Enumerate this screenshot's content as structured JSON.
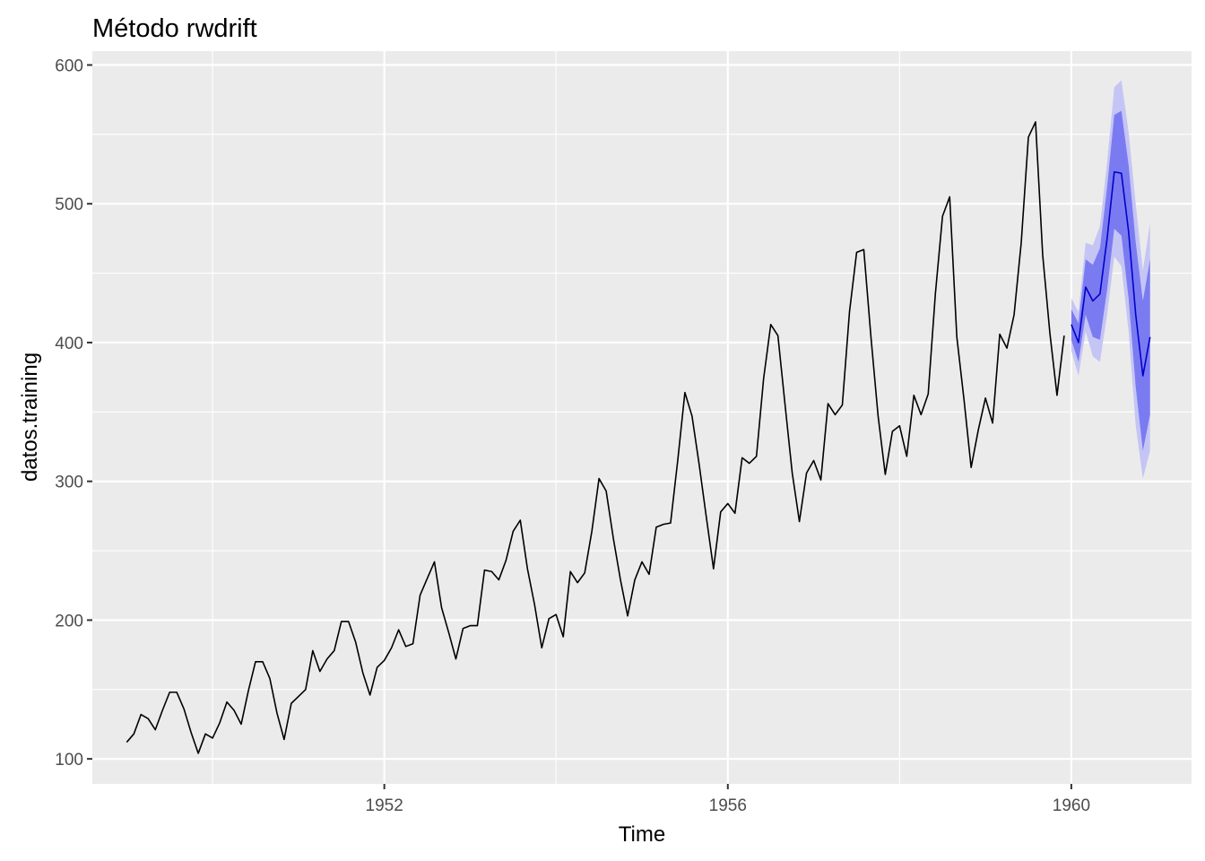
{
  "chart_data": {
    "type": "line",
    "title": "Método rwdrift",
    "xlabel": "Time",
    "ylabel": "datos.training",
    "xlim": [
      1948.6,
      1961.4
    ],
    "ylim": [
      82,
      610
    ],
    "grid": true,
    "x_ticks": [
      {
        "value": 1952,
        "label": "1952"
      },
      {
        "value": 1956,
        "label": "1956"
      },
      {
        "value": 1960,
        "label": "1960"
      }
    ],
    "y_ticks": [
      {
        "value": 100,
        "label": "100"
      },
      {
        "value": 200,
        "label": "200"
      },
      {
        "value": 300,
        "label": "300"
      },
      {
        "value": 400,
        "label": "400"
      },
      {
        "value": 500,
        "label": "500"
      },
      {
        "value": 600,
        "label": "600"
      }
    ],
    "series": [
      {
        "role": "observed",
        "color": "#000000",
        "start": 1949,
        "frequency": 12,
        "values": [
          112,
          118,
          132,
          129,
          121,
          135,
          148,
          148,
          136,
          119,
          104,
          118,
          115,
          126,
          141,
          135,
          125,
          149,
          170,
          170,
          158,
          133,
          114,
          140,
          145,
          150,
          178,
          163,
          172,
          178,
          199,
          199,
          184,
          162,
          146,
          166,
          171,
          180,
          193,
          181,
          183,
          218,
          230,
          242,
          209,
          191,
          172,
          194,
          196,
          196,
          236,
          235,
          229,
          243,
          264,
          272,
          237,
          211,
          180,
          201,
          204,
          188,
          235,
          227,
          234,
          264,
          302,
          293,
          259,
          229,
          203,
          229,
          242,
          233,
          267,
          269,
          270,
          315,
          364,
          347,
          312,
          274,
          237,
          278,
          284,
          277,
          317,
          313,
          318,
          374,
          413,
          405,
          355,
          306,
          271,
          306,
          315,
          301,
          356,
          348,
          355,
          422,
          465,
          467,
          404,
          347,
          305,
          336,
          340,
          318,
          362,
          348,
          363,
          435,
          491,
          505,
          404,
          359,
          310,
          337,
          360,
          342,
          406,
          396,
          420,
          472,
          548,
          559,
          463,
          407,
          362,
          405
        ]
      },
      {
        "role": "forecast",
        "color": "#0000cc",
        "start": 1960,
        "frequency": 12,
        "values": [
          413,
          400,
          440,
          430,
          435,
          475,
          523,
          522,
          480,
          420,
          376,
          404
        ],
        "lower80": [
          402,
          386,
          420,
          404,
          402,
          438,
          482,
          477,
          432,
          368,
          322,
          348
        ],
        "upper80": [
          424,
          414,
          460,
          456,
          468,
          512,
          564,
          567,
          528,
          472,
          430,
          460
        ],
        "lower95": [
          394,
          376,
          408,
          390,
          386,
          420,
          462,
          455,
          408,
          340,
          302,
          322
        ],
        "upper95": [
          432,
          422,
          472,
          470,
          484,
          530,
          584,
          589,
          552,
          500,
          452,
          486
        ],
        "band80_color": "#7b7bf1",
        "band95_color": "#c5c5f5"
      }
    ]
  }
}
